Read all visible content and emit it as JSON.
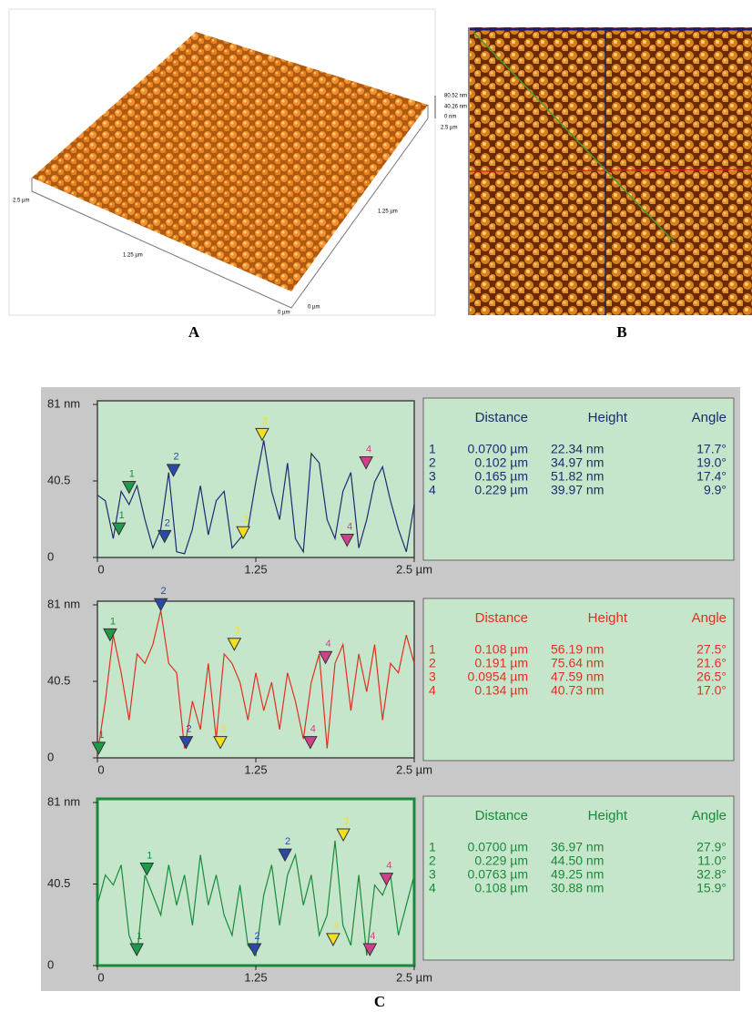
{
  "panel_a": {
    "labels": [
      "80.52 nm",
      "40.26 nm",
      "0 nm",
      "2.5 µm",
      "2.5 µm",
      "1.25 µm",
      "1.25 µm",
      "0 µm",
      "0 µm"
    ],
    "caption": "A"
  },
  "panel_b": {
    "caption": "B"
  },
  "panel_c": {
    "caption": "C"
  },
  "chart_data": [
    {
      "type": "line",
      "xlim": [
        0,
        2.5
      ],
      "ylim": [
        0,
        81
      ],
      "xticks": [
        0,
        1.25,
        {
          "value": 2.5,
          "label": "2.5 µm"
        }
      ],
      "yticks": [
        0,
        40.5,
        {
          "value": 81,
          "label": "81 nm"
        }
      ],
      "x": [
        0,
        0.0625,
        0.125,
        0.1875,
        0.25,
        0.3125,
        0.375,
        0.4375,
        0.5,
        0.5625,
        0.625,
        0.6875,
        0.75,
        0.8125,
        0.875,
        0.9375,
        1,
        1.0625,
        1.125,
        1.1875,
        1.25,
        1.3125,
        1.375,
        1.4375,
        1.5,
        1.5625,
        1.625,
        1.6875,
        1.75,
        1.8125,
        1.875,
        1.9375,
        2,
        2.0625,
        2.125,
        2.1875,
        2.25,
        2.3125,
        2.375,
        2.4375,
        2.5
      ],
      "series": [
        {
          "color": "#1f2a6e",
          "values": [
            33,
            30,
            10,
            35,
            28,
            38,
            20,
            5,
            15,
            45,
            3,
            2,
            15,
            38,
            12,
            30,
            35,
            5,
            10,
            15,
            40,
            62,
            35,
            20,
            50,
            10,
            3,
            55,
            50,
            20,
            10,
            35,
            45,
            5,
            20,
            40,
            48,
            30,
            15,
            3,
            28
          ]
        }
      ],
      "markers": [
        {
          "label": "1",
          "color": "#1e9a4a",
          "x": 0.17,
          "y": 12
        },
        {
          "label": "1",
          "color": "#1e9a4a",
          "x": 0.25,
          "y": 34
        },
        {
          "label": "2",
          "color": "#2a4aa8",
          "x": 0.53,
          "y": 8
        },
        {
          "label": "2",
          "color": "#2a4aa8",
          "x": 0.6,
          "y": 43
        },
        {
          "label": "3",
          "color": "#f2e020",
          "x": 1.15,
          "y": 10
        },
        {
          "label": "3",
          "color": "#f2e020",
          "x": 1.3,
          "y": 62
        },
        {
          "label": "4",
          "color": "#d0408a",
          "x": 1.97,
          "y": 6
        },
        {
          "label": "4",
          "color": "#d0408a",
          "x": 2.12,
          "y": 47
        }
      ],
      "table": {
        "color": "#1f2a6e",
        "columns": [
          "Distance",
          "Height",
          "Angle"
        ],
        "rows": [
          [
            "1",
            "0.0700 µm",
            "22.34 nm",
            "17.7°"
          ],
          [
            "2",
            "0.102 µm",
            "34.97 nm",
            "19.0°"
          ],
          [
            "3",
            "0.165 µm",
            "51.82 nm",
            "17.4°"
          ],
          [
            "4",
            "0.229 µm",
            "39.97 nm",
            "9.9°"
          ]
        ]
      }
    },
    {
      "type": "line",
      "xlim": [
        0,
        2.5
      ],
      "ylim": [
        0,
        81
      ],
      "xticks": [
        0,
        1.25,
        {
          "value": 2.5,
          "label": "2.5 µm"
        }
      ],
      "yticks": [
        0,
        40.5,
        {
          "value": 81,
          "label": "81 nm"
        }
      ],
      "x": [
        0,
        0.0625,
        0.125,
        0.1875,
        0.25,
        0.3125,
        0.375,
        0.4375,
        0.5,
        0.5625,
        0.625,
        0.6875,
        0.75,
        0.8125,
        0.875,
        0.9375,
        1,
        1.0625,
        1.125,
        1.1875,
        1.25,
        1.3125,
        1.375,
        1.4375,
        1.5,
        1.5625,
        1.625,
        1.6875,
        1.75,
        1.8125,
        1.875,
        1.9375,
        2,
        2.0625,
        2.125,
        2.1875,
        2.25,
        2.3125,
        2.375,
        2.4375,
        2.5
      ],
      "series": [
        {
          "color": "#e03020",
          "values": [
            2,
            30,
            65,
            45,
            20,
            55,
            50,
            60,
            78,
            50,
            45,
            5,
            30,
            15,
            50,
            10,
            55,
            50,
            40,
            20,
            45,
            25,
            40,
            15,
            45,
            30,
            10,
            40,
            55,
            5,
            50,
            60,
            25,
            55,
            35,
            60,
            20,
            50,
            45,
            65,
            50
          ]
        }
      ],
      "markers": [
        {
          "label": "1",
          "color": "#1e9a4a",
          "x": 0.01,
          "y": 2
        },
        {
          "label": "1",
          "color": "#1e9a4a",
          "x": 0.1,
          "y": 62
        },
        {
          "label": "2",
          "color": "#2a4aa8",
          "x": 0.7,
          "y": 5
        },
        {
          "label": "2",
          "color": "#2a4aa8",
          "x": 0.5,
          "y": 78
        },
        {
          "label": "3",
          "color": "#f2e020",
          "x": 0.97,
          "y": 5
        },
        {
          "label": "3",
          "color": "#f2e020",
          "x": 1.08,
          "y": 57
        },
        {
          "label": "4",
          "color": "#d0408a",
          "x": 1.68,
          "y": 5
        },
        {
          "label": "4",
          "color": "#d0408a",
          "x": 1.8,
          "y": 50
        }
      ],
      "table": {
        "color": "#e03020",
        "columns": [
          "Distance",
          "Height",
          "Angle"
        ],
        "rows": [
          [
            "1",
            "0.108 µm",
            "56.19 nm",
            "27.5°"
          ],
          [
            "2",
            "0.191 µm",
            "75.64 nm",
            "21.6°"
          ],
          [
            "3",
            "0.0954 µm",
            "47.59 nm",
            "26.5°"
          ],
          [
            "4",
            "0.134 µm",
            "40.73 nm",
            "17.0°"
          ]
        ]
      }
    },
    {
      "type": "line",
      "xlim": [
        0,
        2.5
      ],
      "ylim": [
        0,
        81
      ],
      "xticks": [
        0,
        1.25,
        {
          "value": 2.5,
          "label": "2.5 µm"
        }
      ],
      "yticks": [
        0,
        40.5,
        {
          "value": 81,
          "label": "81 nm"
        }
      ],
      "x": [
        0,
        0.0625,
        0.125,
        0.1875,
        0.25,
        0.3125,
        0.375,
        0.4375,
        0.5,
        0.5625,
        0.625,
        0.6875,
        0.75,
        0.8125,
        0.875,
        0.9375,
        1,
        1.0625,
        1.125,
        1.1875,
        1.25,
        1.3125,
        1.375,
        1.4375,
        1.5,
        1.5625,
        1.625,
        1.6875,
        1.75,
        1.8125,
        1.875,
        1.9375,
        2,
        2.0625,
        2.125,
        2.1875,
        2.25,
        2.3125,
        2.375,
        2.4375,
        2.5
      ],
      "series": [
        {
          "color": "#1a8a3a",
          "values": [
            30,
            45,
            40,
            50,
            15,
            5,
            45,
            35,
            25,
            50,
            30,
            45,
            20,
            55,
            30,
            45,
            25,
            15,
            40,
            10,
            5,
            35,
            50,
            20,
            45,
            55,
            30,
            45,
            15,
            25,
            62,
            20,
            10,
            45,
            5,
            40,
            35,
            45,
            15,
            30,
            45
          ]
        }
      ],
      "markers": [
        {
          "label": "1",
          "color": "#1e9a4a",
          "x": 0.31,
          "y": 5
        },
        {
          "label": "1",
          "color": "#1e9a4a",
          "x": 0.39,
          "y": 45
        },
        {
          "label": "2",
          "color": "#2a4aa8",
          "x": 1.24,
          "y": 5
        },
        {
          "label": "2",
          "color": "#2a4aa8",
          "x": 1.48,
          "y": 52
        },
        {
          "label": "3",
          "color": "#f2e020",
          "x": 1.86,
          "y": 10
        },
        {
          "label": "3",
          "color": "#f2e020",
          "x": 1.94,
          "y": 62
        },
        {
          "label": "4",
          "color": "#d0408a",
          "x": 2.15,
          "y": 5
        },
        {
          "label": "4",
          "color": "#d0408a",
          "x": 2.28,
          "y": 40
        }
      ],
      "table": {
        "color": "#1a8a3a",
        "columns": [
          "Distance",
          "Height",
          "Angle"
        ],
        "rows": [
          [
            "1",
            "0.0700 µm",
            "36.97 nm",
            "27.9°"
          ],
          [
            "2",
            "0.229 µm",
            "44.50 nm",
            "11.0°"
          ],
          [
            "3",
            "0.0763 µm",
            "49.25 nm",
            "32.8°"
          ],
          [
            "4",
            "0.108 µm",
            "30.88 nm",
            "15.9°"
          ]
        ]
      }
    }
  ]
}
